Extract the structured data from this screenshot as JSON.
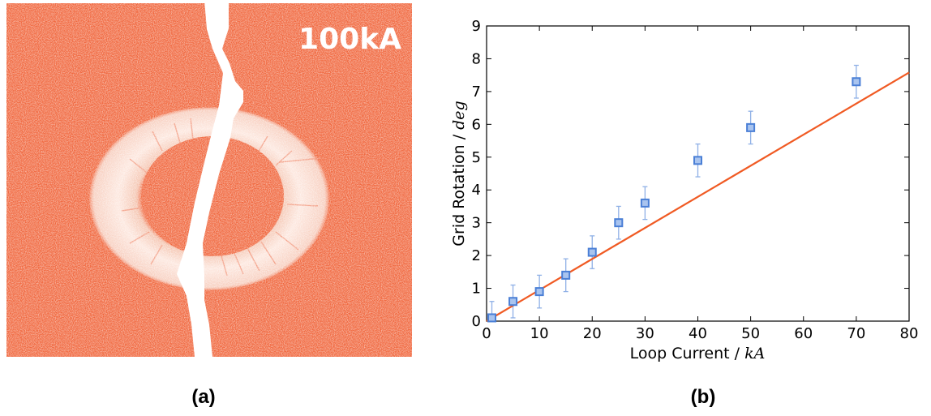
{
  "panel_a": {
    "label": "(a)",
    "current_label": "100kA",
    "colors": {
      "material": "#f0643a",
      "ring": "#fbe0d6",
      "crack": "#ffffff",
      "text": "#ffffff"
    }
  },
  "panel_b": {
    "label": "(b)"
  },
  "chart_data": {
    "type": "scatter",
    "title": "",
    "xlabel": "Loop Current / ",
    "xlabel_math": "kA",
    "ylabel": "Grid Rotation / ",
    "ylabel_math": "deg",
    "xlim": [
      0,
      80
    ],
    "ylim": [
      0,
      9
    ],
    "xticks": [
      0,
      10,
      20,
      30,
      40,
      50,
      60,
      70,
      80
    ],
    "yticks": [
      0,
      1,
      2,
      3,
      4,
      5,
      6,
      7,
      8,
      9
    ],
    "grid": false,
    "series": [
      {
        "type": "scatter",
        "marker": "square",
        "color": "#4a7fd6",
        "x": [
          1,
          5,
          10,
          15,
          20,
          25,
          30,
          40,
          50,
          70
        ],
        "y": [
          0.1,
          0.6,
          0.9,
          1.4,
          2.1,
          3.0,
          3.6,
          4.9,
          5.9,
          7.3
        ],
        "yerr": [
          0.5,
          0.5,
          0.5,
          0.5,
          0.5,
          0.5,
          0.5,
          0.5,
          0.5,
          0.5
        ]
      },
      {
        "type": "line",
        "color": "#f05a23",
        "x": [
          0,
          80
        ],
        "y": [
          0,
          7.58
        ]
      }
    ]
  }
}
